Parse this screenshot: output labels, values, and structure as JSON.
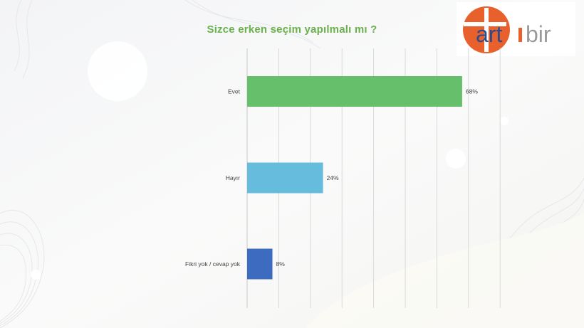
{
  "header": {
    "title": "Sizce erken seçim yapılmalı mı ?"
  },
  "logo": {
    "text_left": "art",
    "text_right": "bir",
    "accent_color": "#e8612c",
    "text_color": "#2e4a8a"
  },
  "chart_data": {
    "type": "bar",
    "orientation": "horizontal",
    "title": "Sizce erken seçim yapılmalı mı ?",
    "categories": [
      "Evet",
      "Hayır",
      "Fikri yok / cevap yok"
    ],
    "values": [
      68,
      24,
      8
    ],
    "value_labels": [
      "68%",
      "24%",
      "8%"
    ],
    "colors": [
      "#66bf6a",
      "#66bcdc",
      "#3d6bbf"
    ],
    "xlim": [
      0,
      80
    ],
    "grid": true,
    "xlabel": "",
    "ylabel": ""
  }
}
